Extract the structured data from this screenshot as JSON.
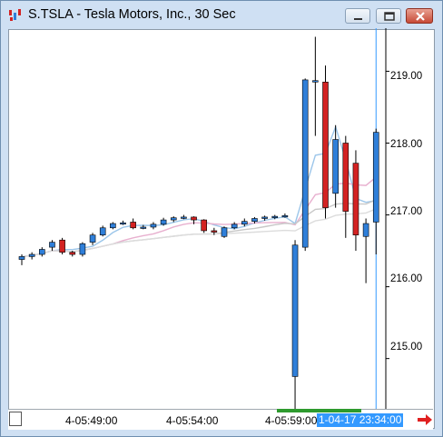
{
  "window": {
    "title": "S.TSLA - Tesla Motors, Inc., 30 Sec",
    "minimize_icon": "minimize-icon",
    "maximize_icon": "maximize-icon",
    "close_icon": "close-icon"
  },
  "time_axis": {
    "labels": [
      "4-05:49:00",
      "4-05:54:00",
      "4-05:59:00"
    ],
    "cursor_label": "1-04-17 23:34:00"
  },
  "price_axis": {
    "labels": [
      "219.00",
      "218.00",
      "217.00",
      "216.00",
      "215.00"
    ]
  },
  "colors": {
    "up": "#2f7fd9",
    "down": "#d32222",
    "accent_green": "#2e9a2e",
    "cursor": "#3399ff"
  },
  "chart_data": {
    "type": "candlestick",
    "ylim": [
      214.3,
      219.6
    ],
    "ticks": [
      219.0,
      218.0,
      217.0,
      216.0,
      215.0
    ],
    "candles": [
      {
        "o": 216.38,
        "h": 216.45,
        "l": 216.3,
        "c": 216.42
      },
      {
        "o": 216.42,
        "h": 216.48,
        "l": 216.38,
        "c": 216.45
      },
      {
        "o": 216.45,
        "h": 216.55,
        "l": 216.42,
        "c": 216.52
      },
      {
        "o": 216.55,
        "h": 216.65,
        "l": 216.5,
        "c": 216.62
      },
      {
        "o": 216.65,
        "h": 216.68,
        "l": 216.45,
        "c": 216.48
      },
      {
        "o": 216.48,
        "h": 216.5,
        "l": 216.42,
        "c": 216.45
      },
      {
        "o": 216.45,
        "h": 216.62,
        "l": 216.42,
        "c": 216.6
      },
      {
        "o": 216.62,
        "h": 216.75,
        "l": 216.58,
        "c": 216.72
      },
      {
        "o": 216.72,
        "h": 216.85,
        "l": 216.7,
        "c": 216.82
      },
      {
        "o": 216.82,
        "h": 216.9,
        "l": 216.8,
        "c": 216.88
      },
      {
        "o": 216.88,
        "h": 216.92,
        "l": 216.86,
        "c": 216.89
      },
      {
        "o": 216.9,
        "h": 216.95,
        "l": 216.8,
        "c": 216.82
      },
      {
        "o": 216.82,
        "h": 216.86,
        "l": 216.8,
        "c": 216.83
      },
      {
        "o": 216.83,
        "h": 216.9,
        "l": 216.8,
        "c": 216.87
      },
      {
        "o": 216.87,
        "h": 216.96,
        "l": 216.85,
        "c": 216.93
      },
      {
        "o": 216.93,
        "h": 216.98,
        "l": 216.9,
        "c": 216.96
      },
      {
        "o": 216.96,
        "h": 217.0,
        "l": 216.94,
        "c": 216.97
      },
      {
        "o": 216.97,
        "h": 216.98,
        "l": 216.87,
        "c": 216.93
      },
      {
        "o": 216.93,
        "h": 216.94,
        "l": 216.75,
        "c": 216.78
      },
      {
        "o": 216.78,
        "h": 216.82,
        "l": 216.72,
        "c": 216.76
      },
      {
        "o": 216.7,
        "h": 216.84,
        "l": 216.68,
        "c": 216.82
      },
      {
        "o": 216.82,
        "h": 216.9,
        "l": 216.8,
        "c": 216.87
      },
      {
        "o": 216.87,
        "h": 216.95,
        "l": 216.84,
        "c": 216.91
      },
      {
        "o": 216.91,
        "h": 216.97,
        "l": 216.88,
        "c": 216.95
      },
      {
        "o": 216.95,
        "h": 216.99,
        "l": 216.92,
        "c": 216.97
      },
      {
        "o": 216.97,
        "h": 217.0,
        "l": 216.94,
        "c": 216.98
      },
      {
        "o": 216.98,
        "h": 217.02,
        "l": 216.96,
        "c": 216.99
      },
      {
        "o": 214.75,
        "h": 216.65,
        "l": 214.3,
        "c": 216.58
      },
      {
        "o": 216.55,
        "h": 218.9,
        "l": 216.5,
        "c": 218.88
      },
      {
        "o": 218.85,
        "h": 219.48,
        "l": 218.1,
        "c": 218.87
      },
      {
        "o": 218.85,
        "h": 219.08,
        "l": 216.95,
        "c": 217.1
      },
      {
        "o": 217.3,
        "h": 218.25,
        "l": 217.1,
        "c": 218.05
      },
      {
        "o": 218.0,
        "h": 218.1,
        "l": 216.68,
        "c": 217.05
      },
      {
        "o": 217.72,
        "h": 217.9,
        "l": 216.5,
        "c": 216.72
      },
      {
        "o": 216.7,
        "h": 216.95,
        "l": 216.05,
        "c": 216.88
      },
      {
        "o": 216.9,
        "h": 218.2,
        "l": 216.45,
        "c": 218.15
      }
    ],
    "cursor_index": 35
  }
}
